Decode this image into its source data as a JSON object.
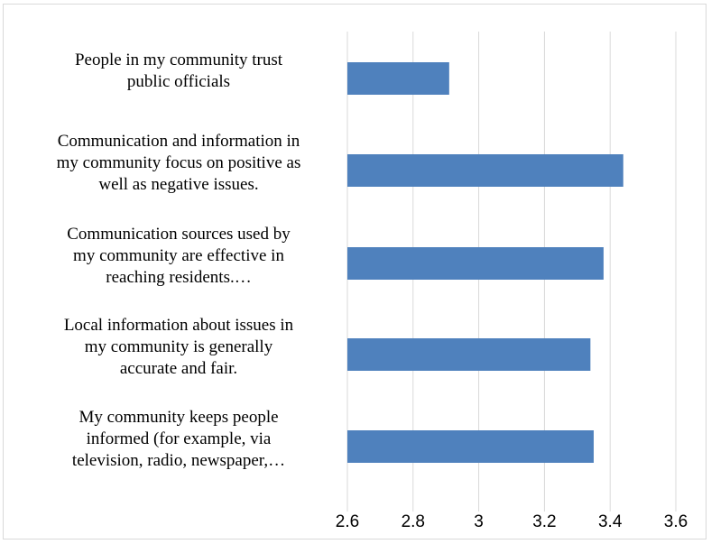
{
  "chart_data": {
    "type": "bar",
    "orientation": "horizontal",
    "title": "",
    "xlabel": "",
    "ylabel": "",
    "categories": [
      "People in my community trust public officials",
      "Communication and information in my community focus on positive as well as negative issues.",
      "Communication sources used by my community are effective in reaching residents.…",
      "Local information about issues in my community is generally accurate and fair.",
      "My community keeps people informed (for example, via television, radio, newspaper,…"
    ],
    "category_label_lines": [
      [
        "People in my community trust",
        "public officials"
      ],
      [
        "Communication and information in",
        "my community focus on positive as",
        "well as negative issues."
      ],
      [
        "Communication sources used by",
        "my community are effective in",
        "reaching residents.…"
      ],
      [
        "Local information about issues in",
        "my community is generally",
        "accurate and fair."
      ],
      [
        "My community keeps people",
        "informed (for example, via",
        "television, radio, newspaper,…"
      ]
    ],
    "values": [
      2.91,
      3.44,
      3.38,
      3.34,
      3.35
    ],
    "xlim": [
      2.6,
      3.6
    ],
    "ticks": [
      "2.6",
      "2.8",
      "3",
      "3.2",
      "3.4",
      "3.6"
    ],
    "grid": true,
    "legend": "none",
    "bar_color": "#4f81bd",
    "grid_color": "#d9d9d9"
  }
}
